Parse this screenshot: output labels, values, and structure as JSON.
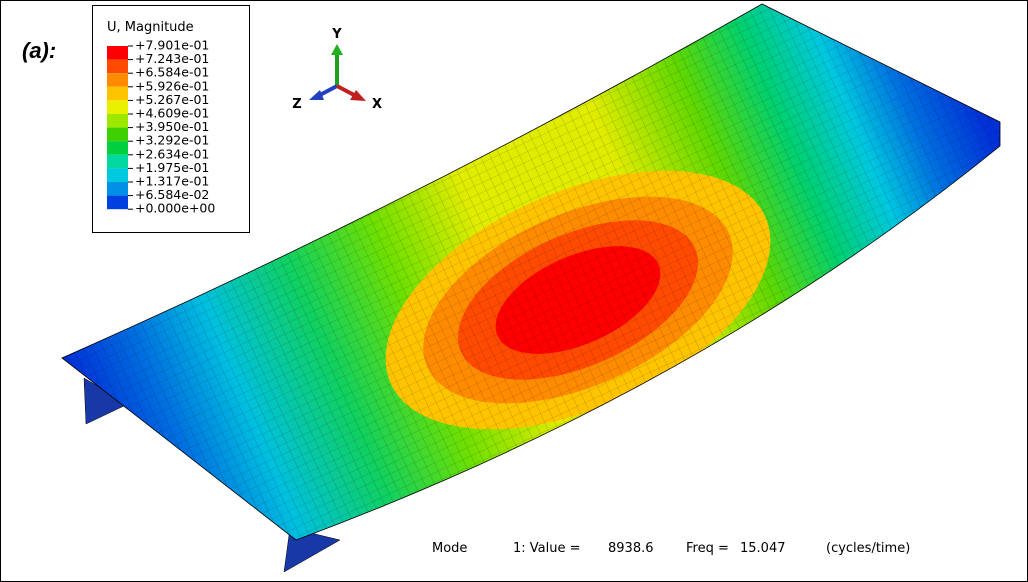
{
  "panel_label": "(a):",
  "legend": {
    "title": "U, Magnitude",
    "labels": [
      "+7.901e-01",
      "+7.243e-01",
      "+6.584e-01",
      "+5.926e-01",
      "+5.267e-01",
      "+4.609e-01",
      "+3.950e-01",
      "+3.292e-01",
      "+2.634e-01",
      "+1.975e-01",
      "+1.317e-01",
      "+6.584e-02",
      "+0.000e+00"
    ],
    "colors": [
      "#ff0000",
      "#ff4a00",
      "#ff8c00",
      "#ffc400",
      "#e8f000",
      "#9ce800",
      "#3ed000",
      "#00d040",
      "#00d8a0",
      "#00c8e0",
      "#0090e8",
      "#0040e0"
    ]
  },
  "triad": {
    "y": "Y",
    "z": "Z",
    "x": "X"
  },
  "status": {
    "mode": "Mode",
    "value_label": "1: Value =",
    "value": "8938.6",
    "freq_label": "Freq =",
    "freq": "15.047",
    "unit": "(cycles/time)"
  }
}
